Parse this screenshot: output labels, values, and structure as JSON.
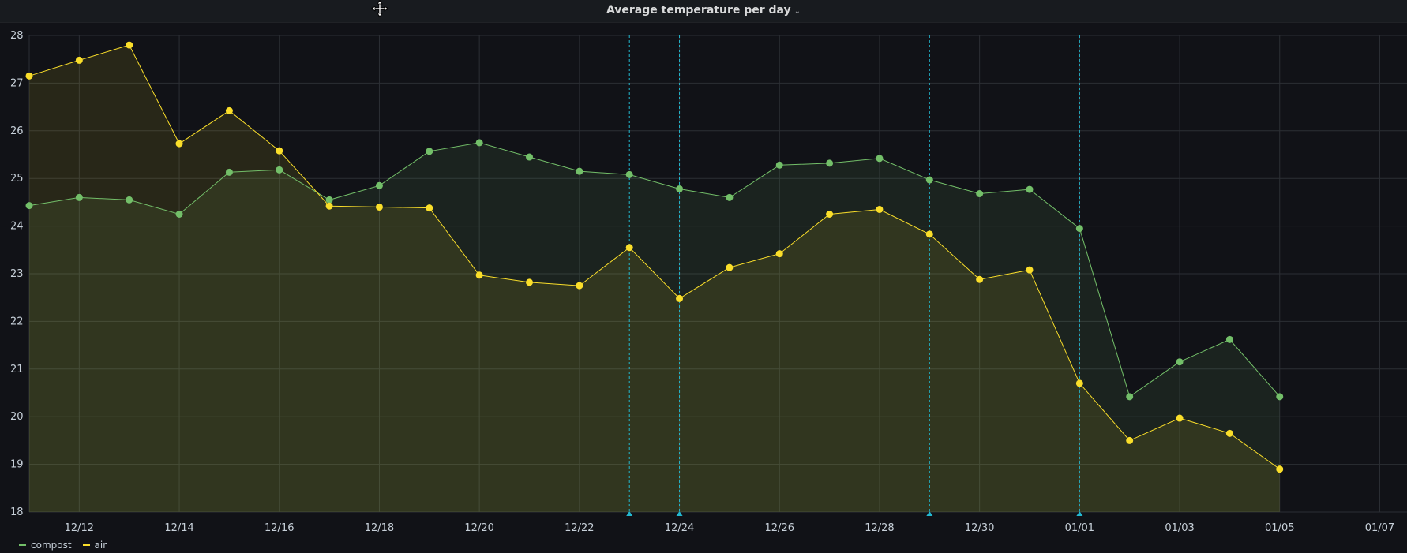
{
  "panel": {
    "title": "Average temperature per day",
    "menu_icon": "chevron-down-icon",
    "move_icon": "move-cursor-icon"
  },
  "chart_data": {
    "type": "line",
    "title": "Average temperature per day",
    "xlabel": "",
    "ylabel": "",
    "x": [
      "12/11",
      "12/12",
      "12/13",
      "12/14",
      "12/15",
      "12/16",
      "12/17",
      "12/18",
      "12/19",
      "12/20",
      "12/21",
      "12/22",
      "12/23",
      "12/24",
      "12/25",
      "12/26",
      "12/27",
      "12/28",
      "12/29",
      "12/30",
      "12/31",
      "01/01",
      "01/02",
      "01/03",
      "01/04",
      "01/05"
    ],
    "x_tick_labels": [
      "12/12",
      "12/14",
      "12/16",
      "12/18",
      "12/20",
      "12/22",
      "12/24",
      "12/26",
      "12/28",
      "12/30",
      "01/01",
      "01/03",
      "01/05",
      "01/07"
    ],
    "x_range": [
      "12/11",
      "01/07"
    ],
    "y_tick_labels": [
      "18",
      "19",
      "20",
      "21",
      "22",
      "23",
      "24",
      "25",
      "26",
      "27",
      "28"
    ],
    "ylim": [
      18,
      28
    ],
    "grid": true,
    "legend_position": "bottom-left",
    "series": [
      {
        "name": "compost",
        "color": "#73bf69",
        "values": [
          24.43,
          24.6,
          24.55,
          24.25,
          25.13,
          25.18,
          24.55,
          24.85,
          25.57,
          25.75,
          25.45,
          25.15,
          25.08,
          24.78,
          24.6,
          25.28,
          25.32,
          25.42,
          24.97,
          24.68,
          24.77,
          23.95,
          20.42,
          21.15,
          21.62,
          20.42
        ]
      },
      {
        "name": "air",
        "color": "#fade2a",
        "values": [
          27.15,
          27.48,
          27.8,
          25.73,
          26.42,
          25.58,
          24.42,
          24.4,
          24.38,
          22.97,
          22.82,
          22.75,
          23.55,
          22.48,
          23.13,
          23.42,
          24.25,
          24.35,
          23.83,
          22.88,
          23.08,
          20.7,
          19.5,
          19.97,
          19.65,
          18.9
        ]
      }
    ],
    "annotations": [
      "12/23",
      "12/24",
      "12/29",
      "01/01"
    ]
  }
}
